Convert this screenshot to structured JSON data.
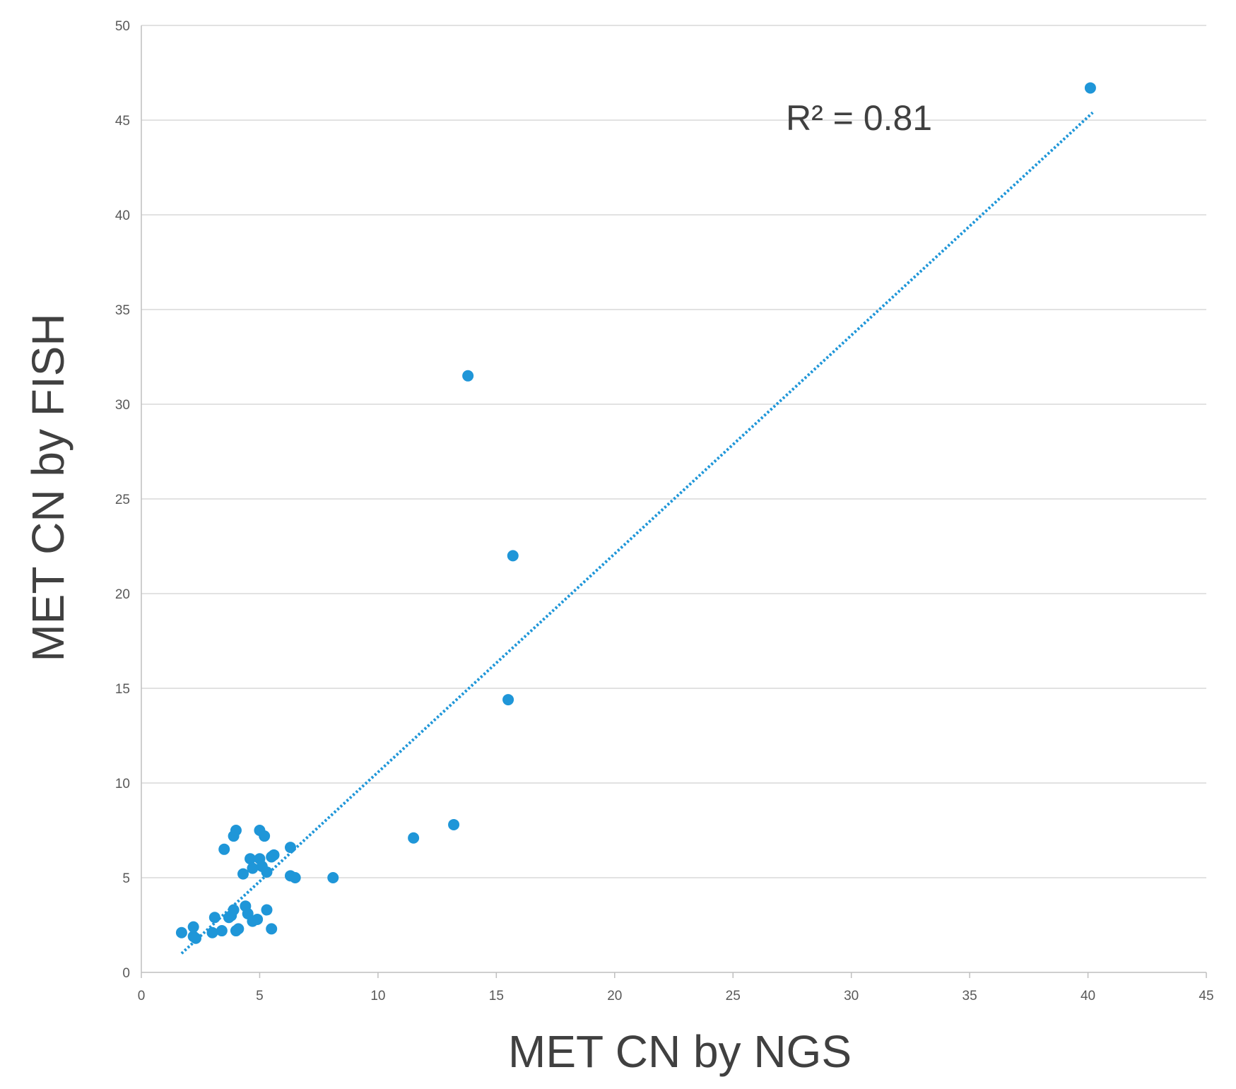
{
  "chart_data": {
    "type": "scatter",
    "title": "",
    "xlabel": "MET CN by NGS",
    "ylabel": "MET CN by FISH",
    "xlim": [
      0,
      45
    ],
    "ylim": [
      0,
      50
    ],
    "x_ticks": [
      "0",
      "5",
      "10",
      "15",
      "20",
      "25",
      "30",
      "35",
      "40",
      "45"
    ],
    "y_ticks": [
      "0",
      "5",
      "10",
      "15",
      "20",
      "25",
      "30",
      "35",
      "40",
      "45",
      "50"
    ],
    "grid": "horizontal",
    "legend": "none",
    "marker_color": "#1f96d8",
    "trendline": {
      "style": "dotted",
      "color": "#1f96d8",
      "from": [
        1.7,
        1.0
      ],
      "to": [
        40.2,
        45.4
      ]
    },
    "annotation": "R² = 0.81",
    "points": [
      [
        40.1,
        46.7
      ],
      [
        13.8,
        31.5
      ],
      [
        15.7,
        22.0
      ],
      [
        15.5,
        14.4
      ],
      [
        13.2,
        7.8
      ],
      [
        11.5,
        7.1
      ],
      [
        8.1,
        5.0
      ],
      [
        1.7,
        2.1
      ],
      [
        2.2,
        2.4
      ],
      [
        2.2,
        1.9
      ],
      [
        2.3,
        1.8
      ],
      [
        3.0,
        2.1
      ],
      [
        3.1,
        2.9
      ],
      [
        3.4,
        2.2
      ],
      [
        3.5,
        6.5
      ],
      [
        3.7,
        2.9
      ],
      [
        3.8,
        3.0
      ],
      [
        3.9,
        3.3
      ],
      [
        3.9,
        7.2
      ],
      [
        4.0,
        7.5
      ],
      [
        4.0,
        2.2
      ],
      [
        4.1,
        2.3
      ],
      [
        4.3,
        5.2
      ],
      [
        4.4,
        3.5
      ],
      [
        4.5,
        3.1
      ],
      [
        4.6,
        6.0
      ],
      [
        4.7,
        5.5
      ],
      [
        4.7,
        2.7
      ],
      [
        4.9,
        2.8
      ],
      [
        5.0,
        6.0
      ],
      [
        5.0,
        7.5
      ],
      [
        5.1,
        5.6
      ],
      [
        5.2,
        7.2
      ],
      [
        5.3,
        3.3
      ],
      [
        5.3,
        5.3
      ],
      [
        5.5,
        6.1
      ],
      [
        5.5,
        2.3
      ],
      [
        5.6,
        6.2
      ],
      [
        6.3,
        6.6
      ],
      [
        6.3,
        5.1
      ],
      [
        6.5,
        5.0
      ]
    ]
  }
}
